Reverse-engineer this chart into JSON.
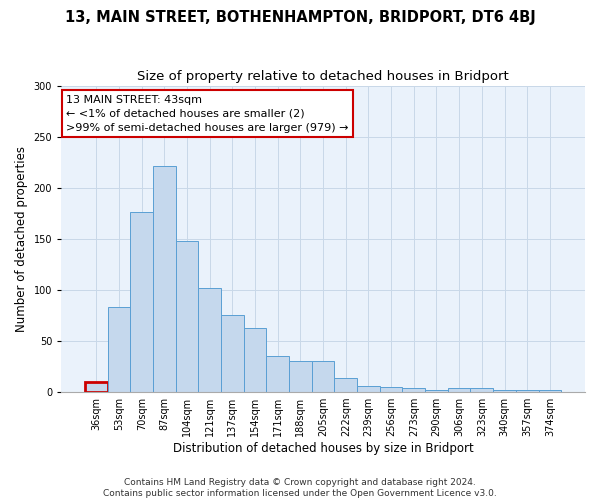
{
  "title": "13, MAIN STREET, BOTHENHAMPTON, BRIDPORT, DT6 4BJ",
  "subtitle": "Size of property relative to detached houses in Bridport",
  "xlabel": "Distribution of detached houses by size in Bridport",
  "ylabel": "Number of detached properties",
  "categories": [
    "36sqm",
    "53sqm",
    "70sqm",
    "87sqm",
    "104sqm",
    "121sqm",
    "137sqm",
    "154sqm",
    "171sqm",
    "188sqm",
    "205sqm",
    "222sqm",
    "239sqm",
    "256sqm",
    "273sqm",
    "290sqm",
    "306sqm",
    "323sqm",
    "340sqm",
    "357sqm",
    "374sqm"
  ],
  "values": [
    10,
    83,
    176,
    221,
    148,
    102,
    75,
    63,
    35,
    30,
    30,
    14,
    6,
    5,
    4,
    2,
    4,
    4,
    2,
    2,
    2
  ],
  "bar_color": "#c5d8ed",
  "bar_edge_color": "#5a9fd4",
  "highlight_index": 0,
  "highlight_color": "#cc0000",
  "annotation_box_text": "13 MAIN STREET: 43sqm\n← <1% of detached houses are smaller (2)\n>99% of semi-detached houses are larger (979) →",
  "ylim": [
    0,
    300
  ],
  "yticks": [
    0,
    50,
    100,
    150,
    200,
    250,
    300
  ],
  "grid_color": "#c8d8e8",
  "background_color": "#eaf2fb",
  "footer_line1": "Contains HM Land Registry data © Crown copyright and database right 2024.",
  "footer_line2": "Contains public sector information licensed under the Open Government Licence v3.0.",
  "title_fontsize": 10.5,
  "subtitle_fontsize": 9.5,
  "axis_label_fontsize": 8.5,
  "tick_fontsize": 7,
  "annotation_fontsize": 8,
  "footer_fontsize": 6.5
}
